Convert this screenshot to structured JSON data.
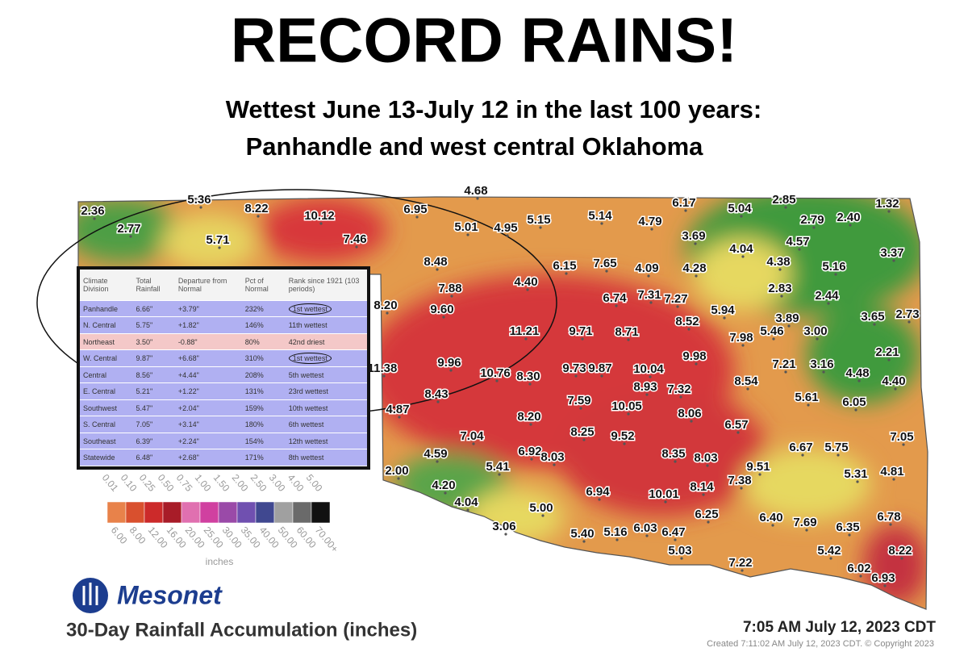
{
  "header": {
    "title": "RECORD RAINS!",
    "subtitle_lines": [
      "Wettest June 13-July 12 in the last 100 years:",
      "Panhandle and west central Oklahoma"
    ]
  },
  "table": {
    "columns": [
      "Climate Division",
      "Total Rainfall",
      "Departure from Normal",
      "Pct of Normal",
      "Rank since 1921 (103 periods)"
    ],
    "rows": [
      [
        "Panhandle",
        "6.66\"",
        "+3.79\"",
        "232%",
        "1st wettest"
      ],
      [
        "N. Central",
        "5.75\"",
        "+1.82\"",
        "146%",
        "11th wettest"
      ],
      [
        "Northeast",
        "3.50\"",
        "-0.88\"",
        "80%",
        "42nd driest"
      ],
      [
        "W. Central",
        "9.87\"",
        "+6.68\"",
        "310%",
        "1st wettest"
      ],
      [
        "Central",
        "8.56\"",
        "+4.44\"",
        "208%",
        "5th wettest"
      ],
      [
        "E. Central",
        "5.21\"",
        "+1.22\"",
        "131%",
        "23rd wettest"
      ],
      [
        "Southwest",
        "5.47\"",
        "+2.04\"",
        "159%",
        "10th wettest"
      ],
      [
        "S. Central",
        "7.05\"",
        "+3.14\"",
        "180%",
        "6th wettest"
      ],
      [
        "Southeast",
        "6.39\"",
        "+2.24\"",
        "154%",
        "12th wettest"
      ],
      [
        "Statewide",
        "6.48\"",
        "+2.68\"",
        "171%",
        "8th wettest"
      ]
    ]
  },
  "stations": [
    "2.36",
    "2.77",
    "5.36",
    "8.22",
    "10.12",
    "5.71",
    "7.46",
    "6.95",
    "4.68",
    "5.01",
    "4.95",
    "5.15",
    "5.14",
    "4.79",
    "6.17",
    "5.04",
    "2.85",
    "1.32",
    "2.79",
    "2.40",
    "3.69",
    "4.04",
    "4.57",
    "4.38",
    "3.37",
    "5.16",
    "8.48",
    "6.15",
    "7.65",
    "4.09",
    "4.28",
    "4.40",
    "7.88",
    "2.83",
    "2.44",
    "6.74",
    "7.31",
    "7.27",
    "8.20",
    "9.60",
    "5.94",
    "3.89",
    "3.65",
    "2.73",
    "8.52",
    "5.46",
    "3.00",
    "7.98",
    "11.21",
    "9.71",
    "8.71",
    "2.21",
    "9.98",
    "7.21",
    "3.16",
    "4.48",
    "4.40",
    "11.38",
    "9.96",
    "10.76",
    "8.30",
    "9.73",
    "9.87",
    "10.04",
    "8.93",
    "7.32",
    "8.54",
    "8.43",
    "5.61",
    "6.05",
    "4.87",
    "7.59",
    "10.05",
    "8.06",
    "8.20",
    "6.57",
    "8.25",
    "9.52",
    "7.04",
    "7.05",
    "6.67",
    "5.75",
    "4.59",
    "6.92",
    "8.03",
    "8.35",
    "8.03",
    "5.41",
    "9.51",
    "5.31",
    "4.81",
    "2.00",
    "7.38",
    "4.20",
    "8.14",
    "6.94",
    "10.01",
    "4.04",
    "5.00",
    "6.25",
    "6.40",
    "7.69",
    "6.35",
    "6.78",
    "3.06",
    "5.40",
    "5.16",
    "6.03",
    "6.47",
    "5.03",
    "5.42",
    "8.22",
    "7.22",
    "6.02",
    "6.93"
  ],
  "legend": {
    "upper_labels": [
      "0.01",
      "0.10",
      "0.25",
      "0.50",
      "0.75",
      "1.00",
      "1.50",
      "2.00",
      "2.50",
      "3.00",
      "4.00",
      "5.00"
    ],
    "lower_labels": [
      "6.00",
      "8.00",
      "12.00",
      "16.00",
      "20.00",
      "25.00",
      "30.00",
      "35.00",
      "40.00",
      "50.00",
      "60.00",
      "70.00+"
    ],
    "unit": "inches"
  },
  "footer": {
    "logo": "Mesonet",
    "map_title": "30-Day Rainfall Accumulation (inches)",
    "timestamp": "7:05 AM July 12, 2023 CDT",
    "created": "Created 7:11:02 AM July 12, 2023 CDT. © Copyright 2023"
  }
}
